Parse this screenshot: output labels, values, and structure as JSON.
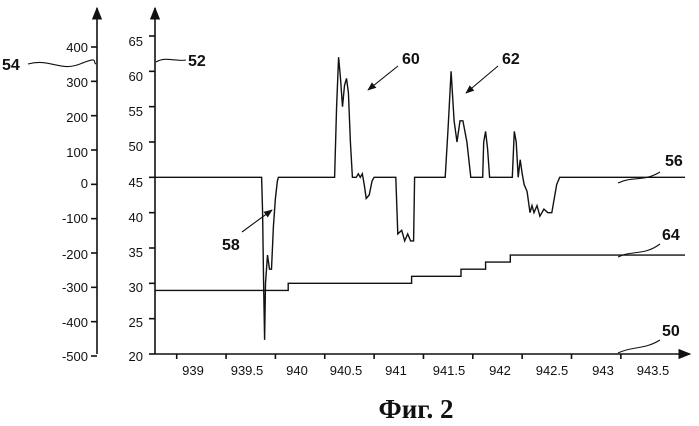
{
  "caption": "Фиг. 2",
  "chart_data": {
    "type": "line",
    "x_ticks": [
      "939",
      "939.5",
      "940",
      "940.5",
      "941",
      "941.5",
      "942",
      "942.5",
      "943",
      "943.5"
    ],
    "xlim": [
      938.78,
      944.15
    ],
    "left_axis_ticks": [
      "400",
      "300",
      "200",
      "100",
      "0",
      "-100",
      "-200",
      "-300",
      "-400",
      "-500"
    ],
    "left_ylim": [
      -500,
      400
    ],
    "right_axis_ticks": [
      "65",
      "60",
      "55",
      "50",
      "45",
      "40",
      "35",
      "30",
      "25",
      "20"
    ],
    "right_ylim": [
      20,
      65
    ],
    "reference_labels": [
      "50",
      "52",
      "54",
      "56",
      "58",
      "60",
      "62",
      "64"
    ],
    "series": [
      {
        "axis": "right",
        "x": [
          938.78,
          939.86,
          939.87,
          939.88,
          939.89,
          939.9,
          939.92,
          939.94,
          939.96,
          939.98,
          940.0,
          940.02,
          940.03,
          940.6,
          940.62,
          940.64,
          940.66,
          940.68,
          940.7,
          940.72,
          940.74,
          940.76,
          940.78,
          940.8,
          940.82,
          940.84,
          940.86,
          940.88,
          940.9,
          940.92,
          940.95,
          940.98,
          941.0,
          941.02,
          941.1,
          941.22,
          941.24,
          941.28,
          941.31,
          941.34,
          941.37,
          941.4,
          941.41,
          941.42,
          941.72,
          941.75,
          941.78,
          941.81,
          941.84,
          941.87,
          941.9,
          941.94,
          941.98,
          942.05,
          942.1,
          942.11,
          942.13,
          942.15,
          942.17,
          942.19,
          942.2,
          942.4,
          942.42,
          942.44,
          942.46,
          942.48,
          942.5,
          942.52,
          942.55,
          942.58,
          942.6,
          942.62,
          942.65,
          942.68,
          942.72,
          942.76,
          942.8,
          942.85,
          942.88,
          942.9,
          944.15
        ],
        "values": [
          45,
          45,
          40,
          30,
          22,
          30,
          34,
          32,
          32,
          38,
          42,
          44.5,
          45,
          45,
          55,
          62,
          59,
          55,
          58,
          59,
          57,
          50,
          45,
          45,
          45,
          45.5,
          45,
          45.5,
          44,
          42,
          42.5,
          44.5,
          45,
          45,
          45,
          45,
          37,
          37.5,
          36,
          37,
          36,
          36,
          45,
          45,
          45,
          52,
          60,
          53,
          50,
          53,
          53,
          50,
          45,
          45,
          45,
          50,
          51.5,
          49,
          45,
          45,
          45,
          45,
          51.5,
          50,
          45,
          47.5,
          45.5,
          44,
          43,
          40,
          41,
          40,
          41,
          39.5,
          40.5,
          40,
          40,
          44,
          45,
          45,
          45
        ]
      },
      {
        "axis": "right",
        "x": [
          938.78,
          940.13,
          940.13,
          941.38,
          941.38,
          941.88,
          941.88,
          942.13,
          942.13,
          942.38,
          942.38,
          942.63,
          942.63,
          944.15
        ],
        "values": [
          29,
          29,
          30,
          30,
          31,
          31,
          32,
          32,
          33,
          33,
          34,
          34,
          34,
          34
        ]
      }
    ]
  }
}
